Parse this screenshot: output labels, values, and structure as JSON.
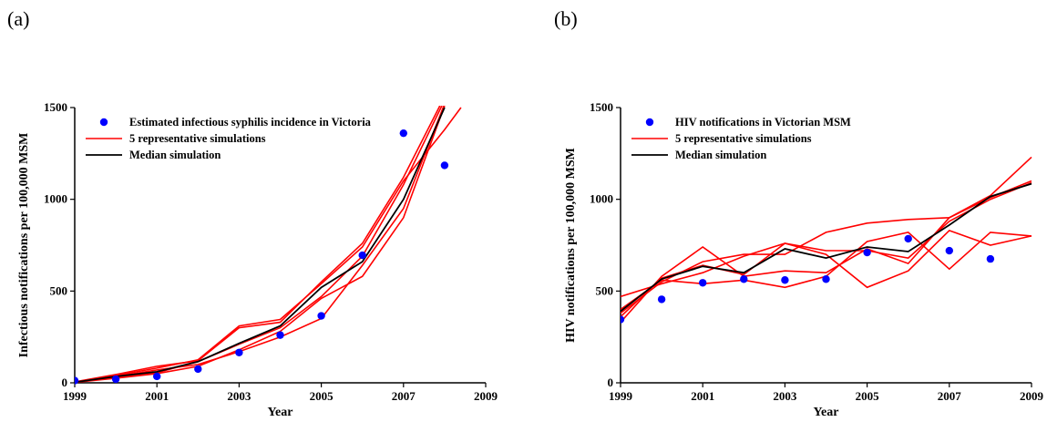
{
  "panels": {
    "a": {
      "label": "(a)"
    },
    "b": {
      "label": "(b)"
    }
  },
  "colors": {
    "observed": "#0000ff",
    "simulation": "#ff0000",
    "median": "#000000"
  },
  "chart_data": [
    {
      "type": "line",
      "panel": "(a)",
      "title": "",
      "xlabel": "Year",
      "ylabel": "Infectious notifications per 100,000 MSM",
      "xlim": [
        1999,
        2009
      ],
      "ylim": [
        0,
        1500
      ],
      "xticks": [
        "1999",
        "2001",
        "2003",
        "2005",
        "2007",
        "2009"
      ],
      "yticks": [
        "0",
        "500",
        "1000",
        "1500"
      ],
      "grid": false,
      "legend_position": "top-left",
      "legend": [
        "Estimated infectious syphilis incidence in Victoria",
        "5 representative simulations",
        "Median simulation"
      ],
      "observed": {
        "name": "Estimated infectious syphilis incidence in Victoria",
        "x": [
          1999,
          2000,
          2001,
          2002,
          2003,
          2004,
          2005,
          2006,
          2007,
          2008
        ],
        "y": [
          12,
          20,
          35,
          75,
          165,
          260,
          365,
          695,
          1360,
          1185
        ]
      },
      "simulations": {
        "name": "5 representative simulations",
        "series": [
          {
            "x": [
              1999,
              2000,
              2001,
              2002,
              2003,
              2004,
              2005,
              2006,
              2007,
              2008
            ],
            "y": [
              5,
              45,
              90,
              120,
              300,
              330,
              550,
              760,
              1120,
              1560
            ]
          },
          {
            "x": [
              1999,
              2000,
              2001,
              2002,
              2003,
              2004,
              2005,
              2006,
              2007,
              2008
            ],
            "y": [
              3,
              30,
              55,
              115,
              210,
              300,
              470,
              690,
              1080,
              1540
            ]
          },
          {
            "x": [
              1999,
              2000,
              2001,
              2002,
              2003,
              2004,
              2005,
              2006,
              2007,
              2008
            ],
            "y": [
              2,
              35,
              70,
              100,
              170,
              250,
              350,
              640,
              950,
              1520
            ]
          },
          {
            "x": [
              1999,
              2000,
              2001,
              2002,
              2003,
              2004,
              2005,
              2006,
              2007,
              2008
            ],
            "y": [
              2,
              25,
              50,
              90,
              180,
              280,
              460,
              580,
              900,
              1510
            ]
          },
          {
            "x": [
              1999,
              2000,
              2001,
              2002,
              2003,
              2004,
              2005,
              2006,
              2007,
              2008,
              2008.4
            ],
            "y": [
              4,
              40,
              80,
              125,
              310,
              345,
              540,
              740,
              1100,
              1380,
              1500
            ]
          }
        ]
      },
      "median": {
        "name": "Median simulation",
        "x": [
          1999,
          2000,
          2001,
          2002,
          2003,
          2004,
          2005,
          2006,
          2007,
          2008
        ],
        "y": [
          3,
          35,
          60,
          115,
          215,
          310,
          520,
          660,
          1000,
          1500
        ]
      }
    },
    {
      "type": "line",
      "panel": "(b)",
      "title": "",
      "xlabel": "Year",
      "ylabel": "HIV notifications per 100,000 MSM",
      "xlim": [
        1999,
        2009
      ],
      "ylim": [
        0,
        1500
      ],
      "xticks": [
        "1999",
        "2001",
        "2003",
        "2005",
        "2007",
        "2009"
      ],
      "yticks": [
        "0",
        "500",
        "1000",
        "1500"
      ],
      "grid": false,
      "legend_position": "top-left",
      "legend": [
        "HIV notifications in Victorian MSM",
        "5 representative simulations",
        "Median simulation"
      ],
      "observed": {
        "name": "HIV notifications in Victorian MSM",
        "x": [
          1999,
          2000,
          2001,
          2002,
          2003,
          2004,
          2005,
          2006,
          2007,
          2008
        ],
        "y": [
          345,
          455,
          545,
          565,
          560,
          565,
          710,
          785,
          720,
          675
        ]
      },
      "simulations": {
        "name": "5 representative simulations",
        "series": [
          {
            "x": [
              1999,
              2000,
              2001,
              2002,
              2003,
              2004,
              2005,
              2006,
              2007,
              2008,
              2009
            ],
            "y": [
              470,
              540,
              600,
              690,
              760,
              700,
              520,
              610,
              830,
              750,
              800
            ]
          },
          {
            "x": [
              1999,
              2000,
              2001,
              2002,
              2003,
              2004,
              2005,
              2006,
              2007,
              2008,
              2009
            ],
            "y": [
              330,
              580,
              740,
              580,
              610,
              600,
              730,
              650,
              900,
              1020,
              1230
            ]
          },
          {
            "x": [
              1999,
              2000,
              2001,
              2002,
              2003,
              2004,
              2005,
              2006,
              2007,
              2008,
              2009
            ],
            "y": [
              380,
              550,
              660,
              700,
              700,
              820,
              870,
              890,
              900,
              1010,
              1100
            ]
          },
          {
            "x": [
              1999,
              2000,
              2001,
              2002,
              2003,
              2004,
              2005,
              2006,
              2007,
              2008,
              2009
            ],
            "y": [
              400,
              560,
              540,
              560,
              520,
              580,
              770,
              820,
              620,
              820,
              800
            ]
          },
          {
            "x": [
              1999,
              2000,
              2001,
              2002,
              2003,
              2004,
              2005,
              2006,
              2007,
              2008,
              2009
            ],
            "y": [
              360,
              570,
              640,
              590,
              760,
              720,
              720,
              680,
              880,
              1000,
              1090
            ]
          }
        ]
      },
      "median": {
        "name": "Median simulation",
        "x": [
          1999,
          2000,
          2001,
          2002,
          2003,
          2004,
          2005,
          2006,
          2007,
          2008,
          2009
        ],
        "y": [
          390,
          565,
          635,
          600,
          730,
          680,
          740,
          715,
          860,
          1015,
          1085
        ]
      }
    }
  ]
}
